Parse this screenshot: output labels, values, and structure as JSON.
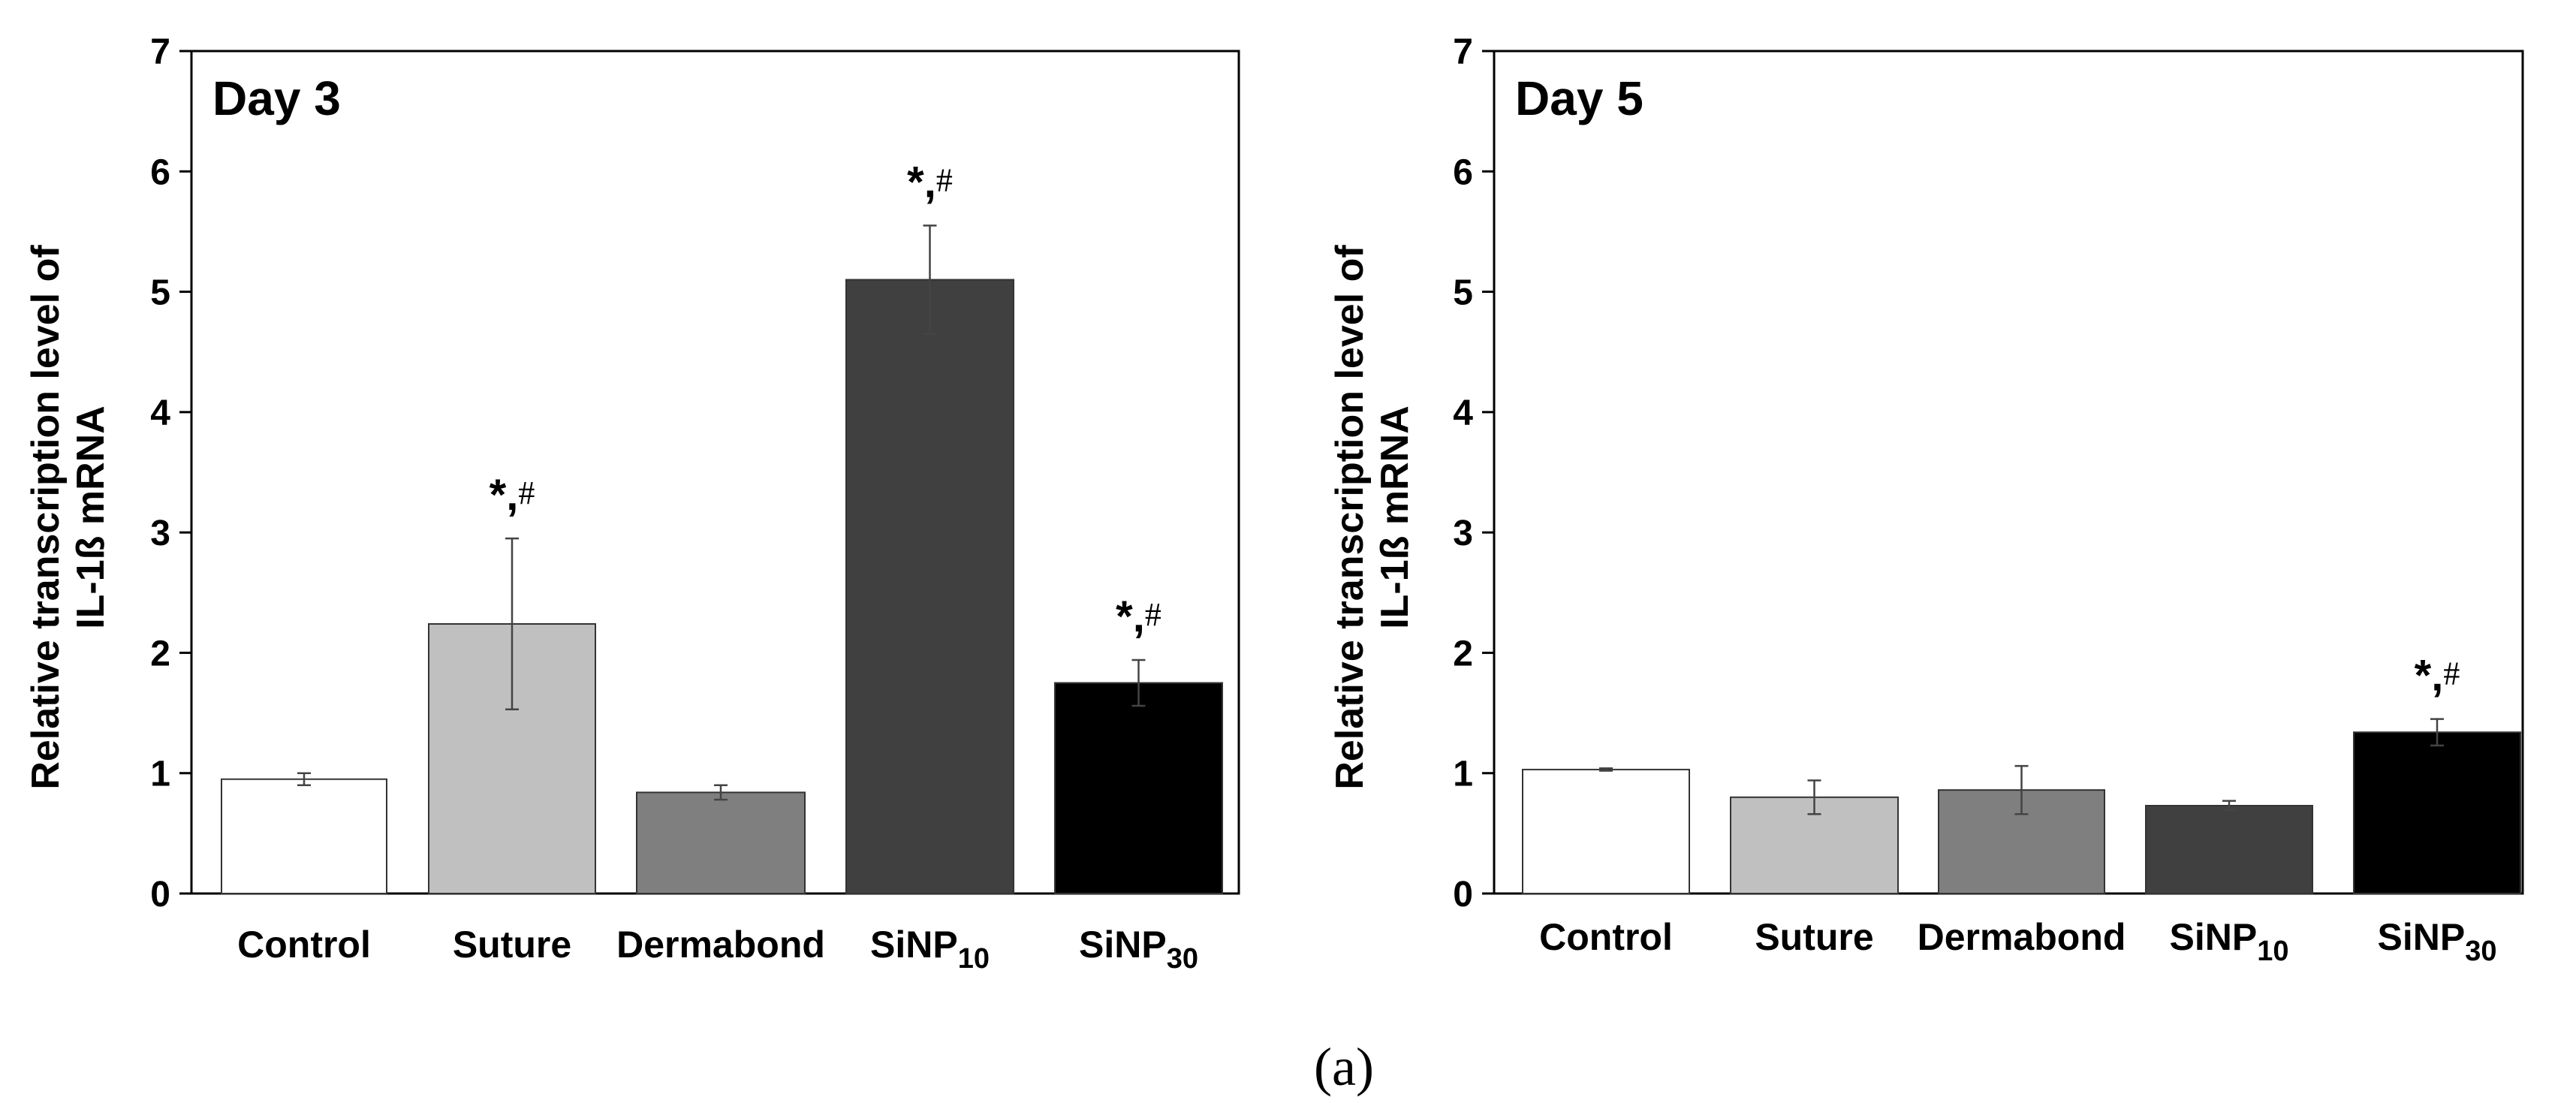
{
  "caption": "(a)",
  "chart_data": [
    {
      "type": "bar",
      "title": "Day 3",
      "ylabel_line1": "Relative transcription level of",
      "ylabel_line2": "IL-1ß mRNA",
      "xlabel": "",
      "ylim": [
        0,
        7
      ],
      "yticks": [
        "0",
        "1",
        "2",
        "3",
        "4",
        "5",
        "6",
        "7"
      ],
      "categories": [
        {
          "base": "Control",
          "sub": ""
        },
        {
          "base": "Suture",
          "sub": ""
        },
        {
          "base": "Dermabond",
          "sub": ""
        },
        {
          "base": "SiNP",
          "sub": "10"
        },
        {
          "base": "SiNP",
          "sub": "30"
        }
      ],
      "values": [
        0.95,
        2.24,
        0.84,
        5.1,
        1.75
      ],
      "errors": [
        0.05,
        0.71,
        0.06,
        0.45,
        0.19
      ],
      "colors": [
        "#ffffff",
        "#c0c0c0",
        "#7f7f7f",
        "#404040",
        "#000000"
      ],
      "annotations": [
        {
          "star": "",
          "hash": ""
        },
        {
          "star": "*,",
          "hash": "#"
        },
        {
          "star": "",
          "hash": ""
        },
        {
          "star": "*,",
          "hash": "#"
        },
        {
          "star": "*,",
          "hash": "#"
        }
      ]
    },
    {
      "type": "bar",
      "title": "Day 5",
      "ylabel_line1": "Relative transcription level of",
      "ylabel_line2": "IL-1ß mRNA",
      "xlabel": "",
      "ylim": [
        0,
        7
      ],
      "yticks": [
        "0",
        "1",
        "2",
        "3",
        "4",
        "5",
        "6",
        "7"
      ],
      "categories": [
        {
          "base": "Control",
          "sub": ""
        },
        {
          "base": "Suture",
          "sub": ""
        },
        {
          "base": "Dermabond",
          "sub": ""
        },
        {
          "base": "SiNP",
          "sub": "10"
        },
        {
          "base": "SiNP",
          "sub": "30"
        }
      ],
      "values": [
        1.03,
        0.8,
        0.86,
        0.73,
        1.34
      ],
      "errors": [
        0.01,
        0.14,
        0.2,
        0.04,
        0.11
      ],
      "colors": [
        "#ffffff",
        "#c0c0c0",
        "#7f7f7f",
        "#404040",
        "#000000"
      ],
      "annotations": [
        {
          "star": "",
          "hash": ""
        },
        {
          "star": "",
          "hash": ""
        },
        {
          "star": "",
          "hash": ""
        },
        {
          "star": "",
          "hash": ""
        },
        {
          "star": "*,",
          "hash": "#"
        }
      ]
    }
  ]
}
